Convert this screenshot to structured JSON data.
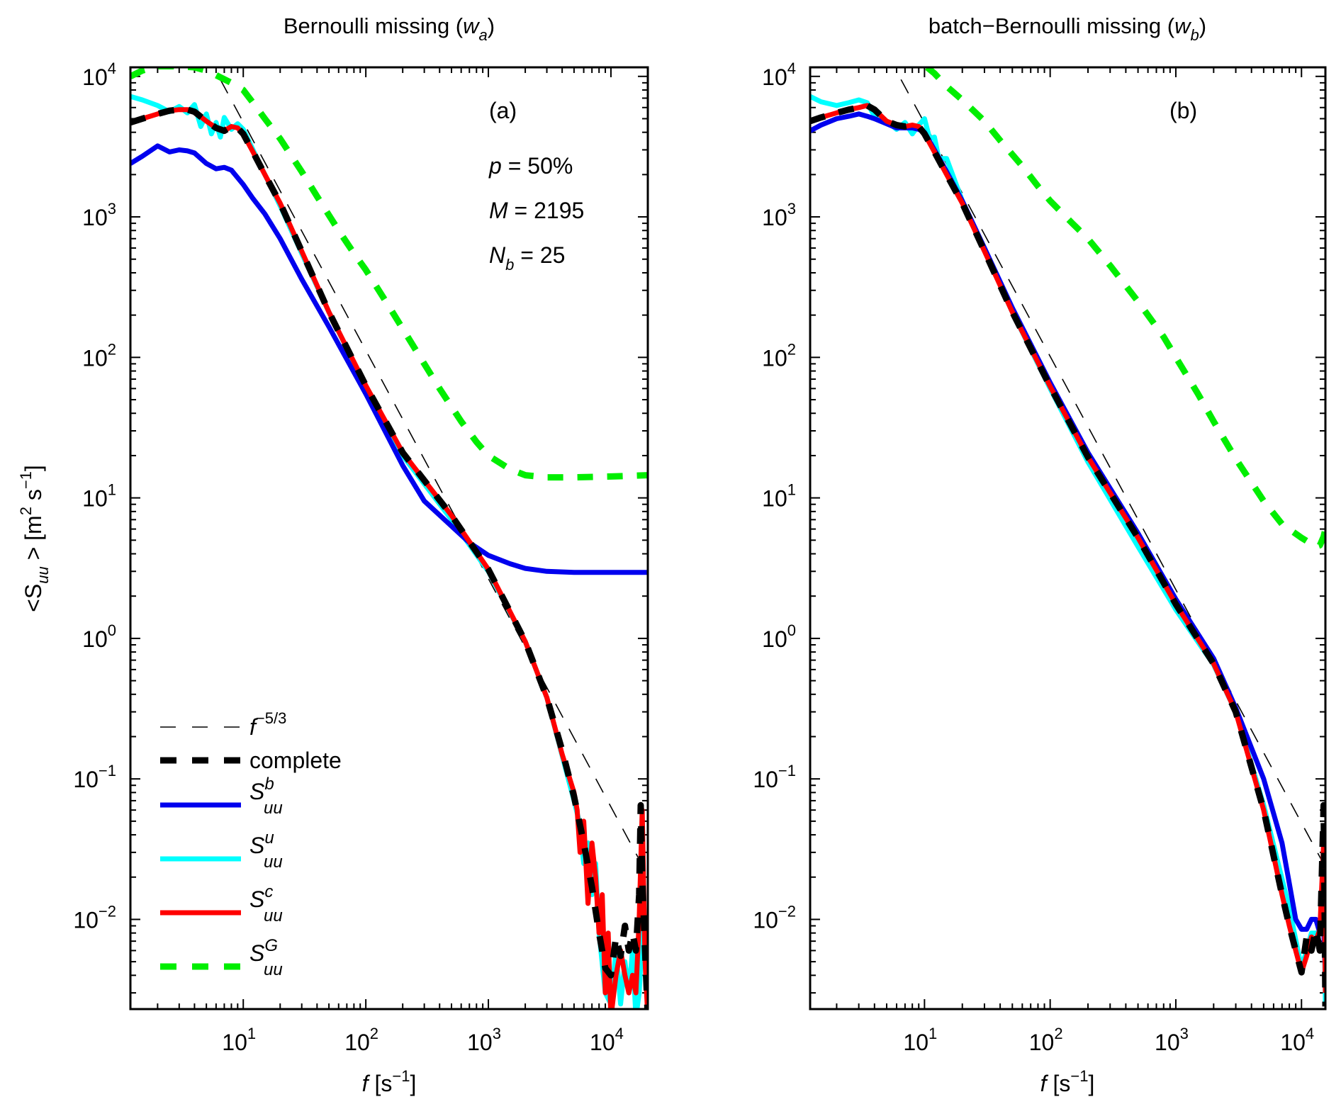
{
  "chart_data": [
    {
      "type": "line",
      "panel_label": "(a)",
      "title": "Bernoulli missing (w_a)",
      "title_main": "Bernoulli missing (",
      "title_var": "w",
      "title_sub": "a",
      "title_close": ")",
      "xlabel": "f [s^-1]",
      "ylabel": "<S_uu> [m^2 s^-1]",
      "xscale": "log",
      "yscale": "log",
      "xlim": [
        1.2,
        20000
      ],
      "ylim": [
        0.0023,
        11600
      ],
      "x_ticks": [
        {
          "base": "10",
          "exp": "1",
          "value": 10
        },
        {
          "base": "10",
          "exp": "2",
          "value": 100
        },
        {
          "base": "10",
          "exp": "3",
          "value": 1000
        },
        {
          "base": "10",
          "exp": "4",
          "value": 10000
        }
      ],
      "y_ticks": [
        {
          "base": "10",
          "exp": "4",
          "value": 10000
        },
        {
          "base": "10",
          "exp": "3",
          "value": 1000
        },
        {
          "base": "10",
          "exp": "2",
          "value": 100
        },
        {
          "base": "10",
          "exp": "1",
          "value": 10
        },
        {
          "base": "10",
          "exp": "0",
          "value": 1
        },
        {
          "base": "10",
          "exp": "−1",
          "value": 0.1
        },
        {
          "base": "10",
          "exp": "−2",
          "value": 0.01
        }
      ],
      "annotations": [
        {
          "var": "p",
          "sub": "",
          "text": " = 50%"
        },
        {
          "var": "M",
          "sub": "",
          "text": " = 2195"
        },
        {
          "var": "N",
          "sub": "b",
          "text": " = 25"
        }
      ],
      "legend": {
        "placement": "bottom-left",
        "entries": [
          {
            "key": "ref",
            "label_main": "f",
            "label_sup": "−5/3",
            "label_sub": ""
          },
          {
            "key": "complete",
            "label_main": "complete",
            "label_sup": "",
            "label_sub": ""
          },
          {
            "key": "Sb",
            "label_main": "S",
            "label_sup": "b",
            "label_sub": "uu"
          },
          {
            "key": "Su",
            "label_main": "S",
            "label_sup": "u",
            "label_sub": "uu"
          },
          {
            "key": "Sc",
            "label_main": "S",
            "label_sup": "c",
            "label_sub": "uu"
          },
          {
            "key": "SG",
            "label_main": "S",
            "label_sup": "G",
            "label_sub": "uu"
          }
        ]
      },
      "series": [
        {
          "name": "f^-5/3",
          "key": "ref",
          "color": "#000000",
          "style": "thin-dashed",
          "x": [
            6.5,
            20000
          ],
          "y": [
            9500,
            0.0205
          ]
        },
        {
          "name": "S_uu^G",
          "key": "SG",
          "color": "#00ee00",
          "style": "dashed",
          "x": [
            1.2,
            1.5,
            2,
            3,
            4,
            5,
            6,
            8,
            10,
            12,
            15,
            20,
            30,
            40,
            60,
            80,
            100,
            150,
            200,
            300,
            400,
            600,
            800,
            1000,
            1500,
            2000,
            3000,
            5000,
            10000,
            20000
          ],
          "y": [
            10000,
            11000,
            11800,
            11800,
            11600,
            11000,
            10200,
            9000,
            8000,
            6500,
            5000,
            3600,
            2100,
            1400,
            800,
            550,
            420,
            240,
            160,
            90,
            60,
            35,
            25,
            20,
            16,
            14.5,
            14,
            14,
            14.2,
            14.5
          ]
        },
        {
          "name": "S_uu^u",
          "key": "Su",
          "color": "#00ffff",
          "style": "solid",
          "x": [
            1.2,
            1.5,
            2,
            2.5,
            3,
            3.5,
            4,
            4.5,
            5,
            5.5,
            6,
            6.5,
            7,
            8,
            9,
            10,
            12,
            15,
            20,
            30,
            50,
            100,
            200,
            500,
            1000,
            2000,
            3000,
            5000,
            5500,
            6000,
            6500,
            7000,
            7500,
            8000,
            9000,
            10000,
            11000,
            12000,
            13000,
            14000,
            15000,
            16000,
            17000,
            18000,
            19000,
            20000
          ],
          "y": [
            7200,
            6800,
            6200,
            5600,
            6100,
            5500,
            6300,
            4400,
            5400,
            3900,
            4700,
            3700,
            5100,
            4200,
            4600,
            4200,
            3000,
            2000,
            1200,
            550,
            210,
            62,
            20,
            7,
            3,
            0.95,
            0.38,
            0.07,
            0.05,
            0.025,
            0.035,
            0.015,
            0.025,
            0.008,
            0.003,
            0.0025,
            0.006,
            0.0025,
            0.005,
            0.003,
            0.006,
            0.002,
            0.003,
            0.008,
            0.01,
            0.002
          ]
        },
        {
          "name": "S_uu^c",
          "key": "Sc",
          "color": "#ff0000",
          "style": "solid",
          "x": [
            1.2,
            1.5,
            2,
            2.5,
            3,
            3.5,
            4,
            5,
            6,
            7,
            8,
            9,
            10,
            12,
            15,
            20,
            30,
            50,
            100,
            200,
            500,
            1000,
            2000,
            3000,
            4000,
            5000,
            5300,
            5600,
            6000,
            6500,
            7000,
            7500,
            8000,
            8500,
            9000,
            9500,
            10000,
            11000,
            12000,
            13000,
            14000,
            15000,
            16000,
            17000,
            18000,
            19000,
            20000
          ],
          "y": [
            4700,
            5000,
            5400,
            5700,
            5800,
            5800,
            5600,
            4800,
            4300,
            4100,
            4400,
            4300,
            3900,
            2900,
            2000,
            1250,
            570,
            210,
            63,
            21,
            7.5,
            3.1,
            0.95,
            0.38,
            0.15,
            0.08,
            0.06,
            0.03,
            0.05,
            0.013,
            0.035,
            0.02,
            0.008,
            0.015,
            0.003,
            0.008,
            0.002,
            0.004,
            0.006,
            0.004,
            0.003,
            0.004,
            0.003,
            0.01,
            0.06,
            0.005,
            0.002
          ]
        },
        {
          "name": "complete",
          "key": "complete",
          "color": "#000000",
          "style": "dashed",
          "x": [
            1.2,
            1.5,
            2,
            2.5,
            3,
            3.5,
            4,
            5,
            6,
            7,
            8,
            9,
            10,
            12,
            15,
            20,
            30,
            50,
            100,
            200,
            500,
            1000,
            2000,
            3000,
            4000,
            5000,
            6000,
            7000,
            8000,
            9000,
            10000,
            11000,
            12000,
            13000,
            14000,
            15000,
            16000,
            17000,
            17500,
            18000,
            19000,
            20000
          ],
          "y": [
            4700,
            5000,
            5400,
            5700,
            5800,
            5800,
            5600,
            4800,
            4300,
            4100,
            4400,
            4300,
            3900,
            2900,
            2000,
            1250,
            570,
            210,
            63,
            21,
            7.5,
            3.1,
            0.95,
            0.38,
            0.16,
            0.075,
            0.035,
            0.017,
            0.008,
            0.0045,
            0.004,
            0.0075,
            0.0055,
            0.009,
            0.006,
            0.008,
            0.006,
            0.015,
            0.065,
            0.02,
            0.006,
            0.002
          ]
        },
        {
          "name": "S_uu^b",
          "key": "Sb",
          "color": "#0000ee",
          "style": "solid",
          "x": [
            1.2,
            1.5,
            2,
            2.5,
            3,
            3.5,
            4,
            4.5,
            5,
            6,
            7,
            8,
            9,
            10,
            12,
            15,
            20,
            30,
            50,
            100,
            200,
            300,
            500,
            700,
            1000,
            1500,
            2000,
            3000,
            5000,
            10000,
            20000
          ],
          "y": [
            2400,
            2700,
            3200,
            2900,
            3000,
            2950,
            2850,
            2600,
            2400,
            2200,
            2250,
            2150,
            1900,
            1700,
            1350,
            1050,
            700,
            360,
            165,
            55,
            17,
            9.5,
            6.3,
            4.8,
            3.9,
            3.4,
            3.15,
            3.0,
            2.95,
            2.95,
            2.95
          ]
        }
      ]
    },
    {
      "type": "line",
      "panel_label": "(b)",
      "title": "batch−Bernoulli missing (w_b)",
      "title_main": "batch−Bernoulli missing (",
      "title_var": "w",
      "title_sub": "b",
      "title_close": ")",
      "xlabel": "f [s^-1]",
      "ylabel": "",
      "xscale": "log",
      "yscale": "log",
      "xlim": [
        1.23,
        15500
      ],
      "ylim": [
        0.0023,
        11600
      ],
      "x_ticks": [
        {
          "base": "10",
          "exp": "1",
          "value": 10
        },
        {
          "base": "10",
          "exp": "2",
          "value": 100
        },
        {
          "base": "10",
          "exp": "3",
          "value": 1000
        },
        {
          "base": "10",
          "exp": "4",
          "value": 10000
        }
      ],
      "y_ticks": [
        {
          "base": "10",
          "exp": "4",
          "value": 10000
        },
        {
          "base": "10",
          "exp": "3",
          "value": 1000
        },
        {
          "base": "10",
          "exp": "2",
          "value": 100
        },
        {
          "base": "10",
          "exp": "1",
          "value": 10
        },
        {
          "base": "10",
          "exp": "0",
          "value": 1
        },
        {
          "base": "10",
          "exp": "−1",
          "value": 0.1
        },
        {
          "base": "10",
          "exp": "−2",
          "value": 0.01
        }
      ],
      "annotations": [],
      "series": [
        {
          "name": "f^-5/3",
          "key": "ref",
          "color": "#000000",
          "style": "thin-dashed",
          "x": [
            6.5,
            15500
          ],
          "y": [
            9500,
            0.0235
          ]
        },
        {
          "name": "S_uu^G",
          "key": "SG",
          "color": "#00ee00",
          "style": "dashed",
          "x": [
            10.5,
            12,
            15,
            20,
            30,
            40,
            60,
            80,
            100,
            150,
            200,
            300,
            500,
            800,
            1000,
            1500,
            2000,
            3000,
            5000,
            7000,
            10000,
            12000,
            13000,
            14000,
            15000,
            15500
          ],
          "y": [
            11600,
            10500,
            8500,
            6800,
            4800,
            3500,
            2300,
            1650,
            1300,
            900,
            700,
            450,
            250,
            140,
            100,
            55,
            35,
            19,
            9.5,
            6.5,
            5.2,
            4.7,
            4.5,
            4.6,
            5.3,
            6.0
          ]
        },
        {
          "name": "S_uu^u",
          "key": "Su",
          "color": "#00ffff",
          "style": "solid",
          "x": [
            1.23,
            1.5,
            2,
            2.5,
            3,
            3.5,
            4,
            5,
            6,
            7,
            8,
            9,
            10,
            11,
            12,
            13,
            15,
            20,
            30,
            50,
            100,
            200,
            500,
            1000,
            2000,
            3000,
            5000,
            8000,
            10000,
            12000,
            14000,
            15000,
            15500
          ],
          "y": [
            7200,
            6600,
            6200,
            6500,
            6800,
            6500,
            5200,
            4800,
            4200,
            4700,
            3900,
            4500,
            5000,
            3600,
            3700,
            2600,
            2600,
            1300,
            580,
            210,
            60,
            18,
            4.5,
            1.6,
            0.65,
            0.3,
            0.065,
            0.012,
            0.0045,
            0.008,
            0.008,
            0.02,
            0.0025
          ]
        },
        {
          "name": "S_uu^b",
          "key": "Sb",
          "color": "#0000ee",
          "style": "solid",
          "x": [
            1.23,
            1.5,
            2,
            2.5,
            3,
            3.5,
            4,
            5,
            6,
            7,
            8,
            9,
            10,
            12,
            15,
            20,
            30,
            50,
            100,
            200,
            500,
            1000,
            2000,
            3000,
            5000,
            7000,
            8000,
            9000,
            10000,
            11000,
            12000,
            13000,
            14000,
            15000,
            15500
          ],
          "y": [
            4100,
            4500,
            5000,
            5200,
            5400,
            5200,
            5000,
            4600,
            4300,
            4300,
            4300,
            4200,
            4000,
            3000,
            2100,
            1300,
            600,
            225,
            66,
            21,
            5.6,
            1.9,
            0.72,
            0.32,
            0.1,
            0.035,
            0.018,
            0.01,
            0.0085,
            0.0085,
            0.01,
            0.01,
            0.008,
            0.009,
            0.004
          ]
        },
        {
          "name": "S_uu^c",
          "key": "Sc",
          "color": "#ff0000",
          "style": "solid",
          "x": [
            1.23,
            1.5,
            2,
            2.5,
            3,
            3.5,
            4,
            5,
            6,
            7,
            8,
            9,
            10,
            12,
            15,
            20,
            30,
            50,
            100,
            200,
            500,
            1000,
            2000,
            3000,
            5000,
            7000,
            8000,
            9000,
            10000,
            11000,
            12000,
            13000,
            14000,
            15000,
            15500
          ],
          "y": [
            4800,
            5100,
            5500,
            5800,
            6000,
            6200,
            5800,
            4800,
            4500,
            4400,
            4500,
            4400,
            3900,
            2900,
            2000,
            1250,
            570,
            210,
            62,
            19.5,
            5.2,
            1.75,
            0.66,
            0.3,
            0.06,
            0.015,
            0.009,
            0.006,
            0.0042,
            0.0055,
            0.0075,
            0.007,
            0.0085,
            0.035,
            0.003
          ]
        },
        {
          "name": "complete",
          "key": "complete",
          "color": "#000000",
          "style": "dashed",
          "x": [
            1.23,
            1.5,
            2,
            2.5,
            3,
            3.5,
            4,
            5,
            6,
            7,
            8,
            9,
            10,
            12,
            15,
            20,
            30,
            50,
            100,
            200,
            500,
            1000,
            2000,
            3000,
            5000,
            7000,
            8000,
            9000,
            10000,
            11000,
            12000,
            13000,
            14000,
            15000,
            15300,
            15500
          ],
          "y": [
            4800,
            5100,
            5500,
            5800,
            6000,
            6200,
            5800,
            4800,
            4500,
            4400,
            4500,
            4400,
            3900,
            2900,
            2000,
            1250,
            570,
            210,
            62,
            19.5,
            5.2,
            1.75,
            0.66,
            0.3,
            0.06,
            0.015,
            0.009,
            0.006,
            0.0042,
            0.0075,
            0.006,
            0.0085,
            0.006,
            0.065,
            0.01,
            0.0024
          ]
        }
      ]
    }
  ]
}
